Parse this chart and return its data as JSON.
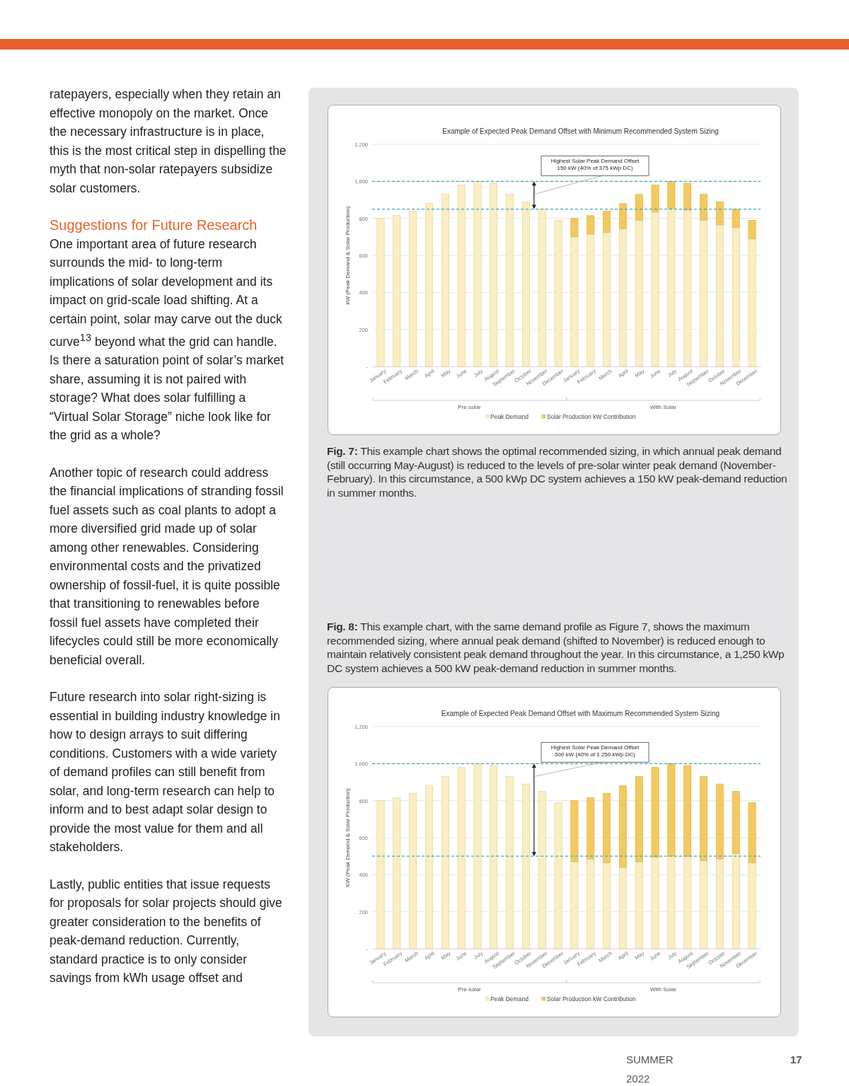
{
  "chart_data": [
    {
      "type": "other",
      "title": "Suggestions for Future Research",
      "annotations": [
        "ratepayers, especially when they retain an effective monopoly on the market. Once the necessary infrastructure is in place, this is the most critical step in dispelling the myth that non-solar ratepayers subsidize solar customers.",
        "One important area of future research surrounds the mid- to long-term implications of solar development and its impact on grid-scale load shifting. At a certain point, solar may carve out the duck curve$^{13}$ beyond what the grid can handle. Is there a saturation point of solar’s market share, assuming it is not paired with storage? What does solar fulfilling a “Virtual Solar Storage” niche look like for the grid as a whole?",
        "Another topic of research could address the financial implications of stranding fossil fuel assets such as coal plants to adopt a more diversified grid made up of solar among other renewables. Considering environmental costs and the privatized ownership of fossil-fuel, it is quite possible that transitioning to renewables before fossil fuel assets have completed their lifecycles could still be more economically beneficial overall.",
        "Future research into solar right-sizing is essential in building industry knowledge in how to design arrays to suit differing conditions. Customers with a wide variety of demand profiles can still benefit from solar, and long-term research can help to inform and to best adapt solar design to provide the most value for them and all stakeholders.",
        "Lastly, public entities that issue requests for proposals for solar projects should give greater consideration to the benefits of peak-demand reduction. Currently, standard practice is to only consider savings from kWh usage offset and",
        "SUMMER 2022",
        "17"
      ]
    },
    {
      "type": "bar",
      "title": "Example of Expected Peak Demand Offset with Minimum Recommended System Sizing",
      "ylabel": "kW (Peak Demand & Solar Production)",
      "categories": [
        "January",
        "February",
        "March",
        "April",
        "May",
        "June",
        "July",
        "August",
        "September",
        "October",
        "November",
        "December",
        "January",
        "February",
        "March",
        "April",
        "May",
        "June",
        "July",
        "August",
        "September",
        "October",
        "November",
        "December"
      ],
      "stacked": true,
      "series": [
        {
          "name": "Peak Demand",
          "color": "#fbeec0",
          "values": [
            800,
            815,
            840,
            880,
            930,
            980,
            1000,
            990,
            930,
            890,
            850,
            790,
            700,
            715,
            725,
            745,
            790,
            835,
            855,
            845,
            790,
            765,
            750,
            690
          ]
        },
        {
          "name": "Solar Production kW Contribution",
          "color": "#f4c95d",
          "values": [
            null,
            null,
            null,
            null,
            null,
            null,
            null,
            null,
            null,
            null,
            null,
            null,
            100,
            100,
            115,
            135,
            140,
            145,
            145,
            145,
            140,
            125,
            100,
            100
          ]
        }
      ],
      "ylim": [
        0,
        1200
      ],
      "yticks": [
        {
          "value": 0,
          "label": "-"
        },
        200,
        400,
        600,
        800,
        {
          "value": 1000,
          "label": "1,000"
        },
        {
          "value": 1200,
          "label": "1,200"
        }
      ],
      "grid": "y",
      "legend": "bottom",
      "ref_lines": [
        {
          "axis": "y",
          "value": 1000,
          "color": "#3fa9b5",
          "line_style": "dashed"
        },
        {
          "axis": "y",
          "value": 850,
          "color": "#3fa9b5",
          "line_style": "dashed"
        }
      ],
      "annotations": [
        "Fig. 7: This example chart shows the optimal recommended sizing, in which annual peak demand (still occurring May-August) is reduced to the levels of pre-solar winter peak demand (November-February). In this circumstance, a 500 kWp DC system achieves a 150 kW peak-demand reduction in summer months.",
        "Highest Solar Peak Demand Offset\n150 kW (40% of 375 kWp DC)",
        "Pre-solar",
        "With Solar"
      ]
    },
    {
      "type": "bar",
      "title": "Example of Expected Peak Demand Offset with Maximum Recommended System Sizing",
      "ylabel": "KW (Peak Demand & Solar Production)",
      "categories": [
        "January",
        "February",
        "March",
        "April",
        "May",
        "June",
        "July",
        "August",
        "September",
        "October",
        "November",
        "December",
        "January",
        "February",
        "March",
        "April",
        "May",
        "June",
        "July",
        "August",
        "September",
        "October",
        "November",
        "December"
      ],
      "stacked": true,
      "series": [
        {
          "name": "Peak Demand",
          "color": "#fbeec0",
          "values": [
            800,
            815,
            840,
            880,
            930,
            980,
            1000,
            990,
            930,
            890,
            850,
            790,
            470,
            485,
            465,
            440,
            470,
            495,
            500,
            500,
            475,
            485,
            515,
            465
          ]
        },
        {
          "name": "Solar Production kW Contribution",
          "color": "#f4c95d",
          "values": [
            null,
            null,
            null,
            null,
            null,
            null,
            null,
            null,
            null,
            null,
            null,
            null,
            330,
            330,
            375,
            440,
            460,
            485,
            500,
            490,
            455,
            405,
            335,
            325
          ]
        }
      ],
      "ylim": [
        0,
        1200
      ],
      "yticks": [
        {
          "value": 0,
          "label": "-"
        },
        200,
        400,
        600,
        800,
        {
          "value": 1000,
          "label": "1,000"
        },
        {
          "value": 1200,
          "label": "1,200"
        }
      ],
      "grid": "y",
      "legend": "bottom",
      "ref_lines": [
        {
          "axis": "y",
          "value": 1000,
          "color": "#3fa9b5",
          "line_style": "dashed"
        },
        {
          "axis": "y",
          "value": 500,
          "color": "#3fa9b5",
          "line_style": "dashed"
        }
      ],
      "annotations": [
        "Fig. 8: This example chart, with the same demand profile as Figure 7, shows the maximum recommended sizing, where annual peak demand (shifted to November) is reduced enough to maintain relatively consistent peak demand throughout the year. In this circumstance, a 1,250 kWp DC system achieves a 500 kW peak-demand reduction in summer months.",
        "Highest Solar Peak Demand Offset\n500 kW (40% of 1.250 kWp DC)",
        "Pre-solar",
        "With Solar"
      ]
    }
  ]
}
